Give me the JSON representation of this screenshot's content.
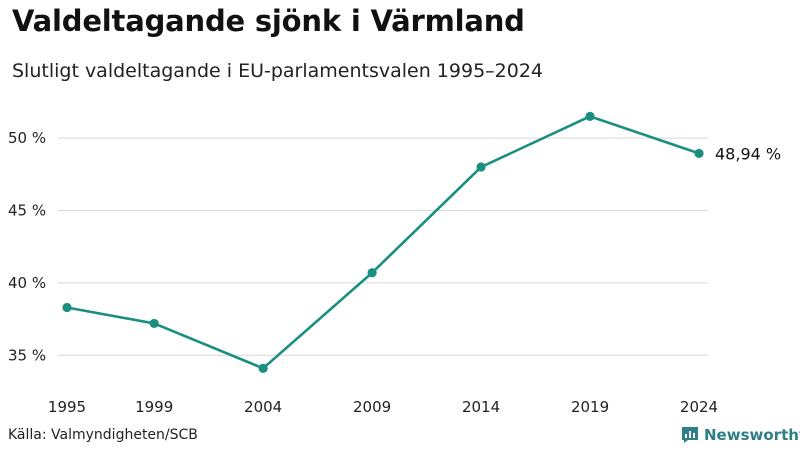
{
  "title": "Valdeltagande sjönk i Värmland",
  "subtitle": "Slutligt valdeltagande i EU-parlamentsvalen 1995–2024",
  "source": "Källa: Valmyndigheten/SCB",
  "brand": "Newsworthy",
  "colors": {
    "line": "#1a8f80",
    "grid": "#d9d9d9",
    "brand": "#2f7f86"
  },
  "chart_data": {
    "type": "line",
    "title": "Valdeltagande sjönk i Värmland",
    "subtitle": "Slutligt valdeltagande i EU-parlamentsvalen 1995–2024",
    "x": [
      1995,
      1999,
      2004,
      2009,
      2014,
      2019,
      2024
    ],
    "x_tick_labels": [
      "1995",
      "1999",
      "2004",
      "2009",
      "2014",
      "2019",
      "2024"
    ],
    "series": [
      {
        "name": "Valdeltagande",
        "values": [
          38.3,
          37.2,
          34.1,
          40.7,
          48.0,
          51.5,
          48.94
        ]
      }
    ],
    "yticks": [
      35,
      40,
      45,
      50
    ],
    "y_tick_labels": [
      "35 %",
      "40 %",
      "45 %",
      "50 %"
    ],
    "ylim": [
      33.5,
      51.8
    ],
    "grid": true,
    "end_label": "48,94 %",
    "xlabel": "",
    "ylabel": ""
  }
}
